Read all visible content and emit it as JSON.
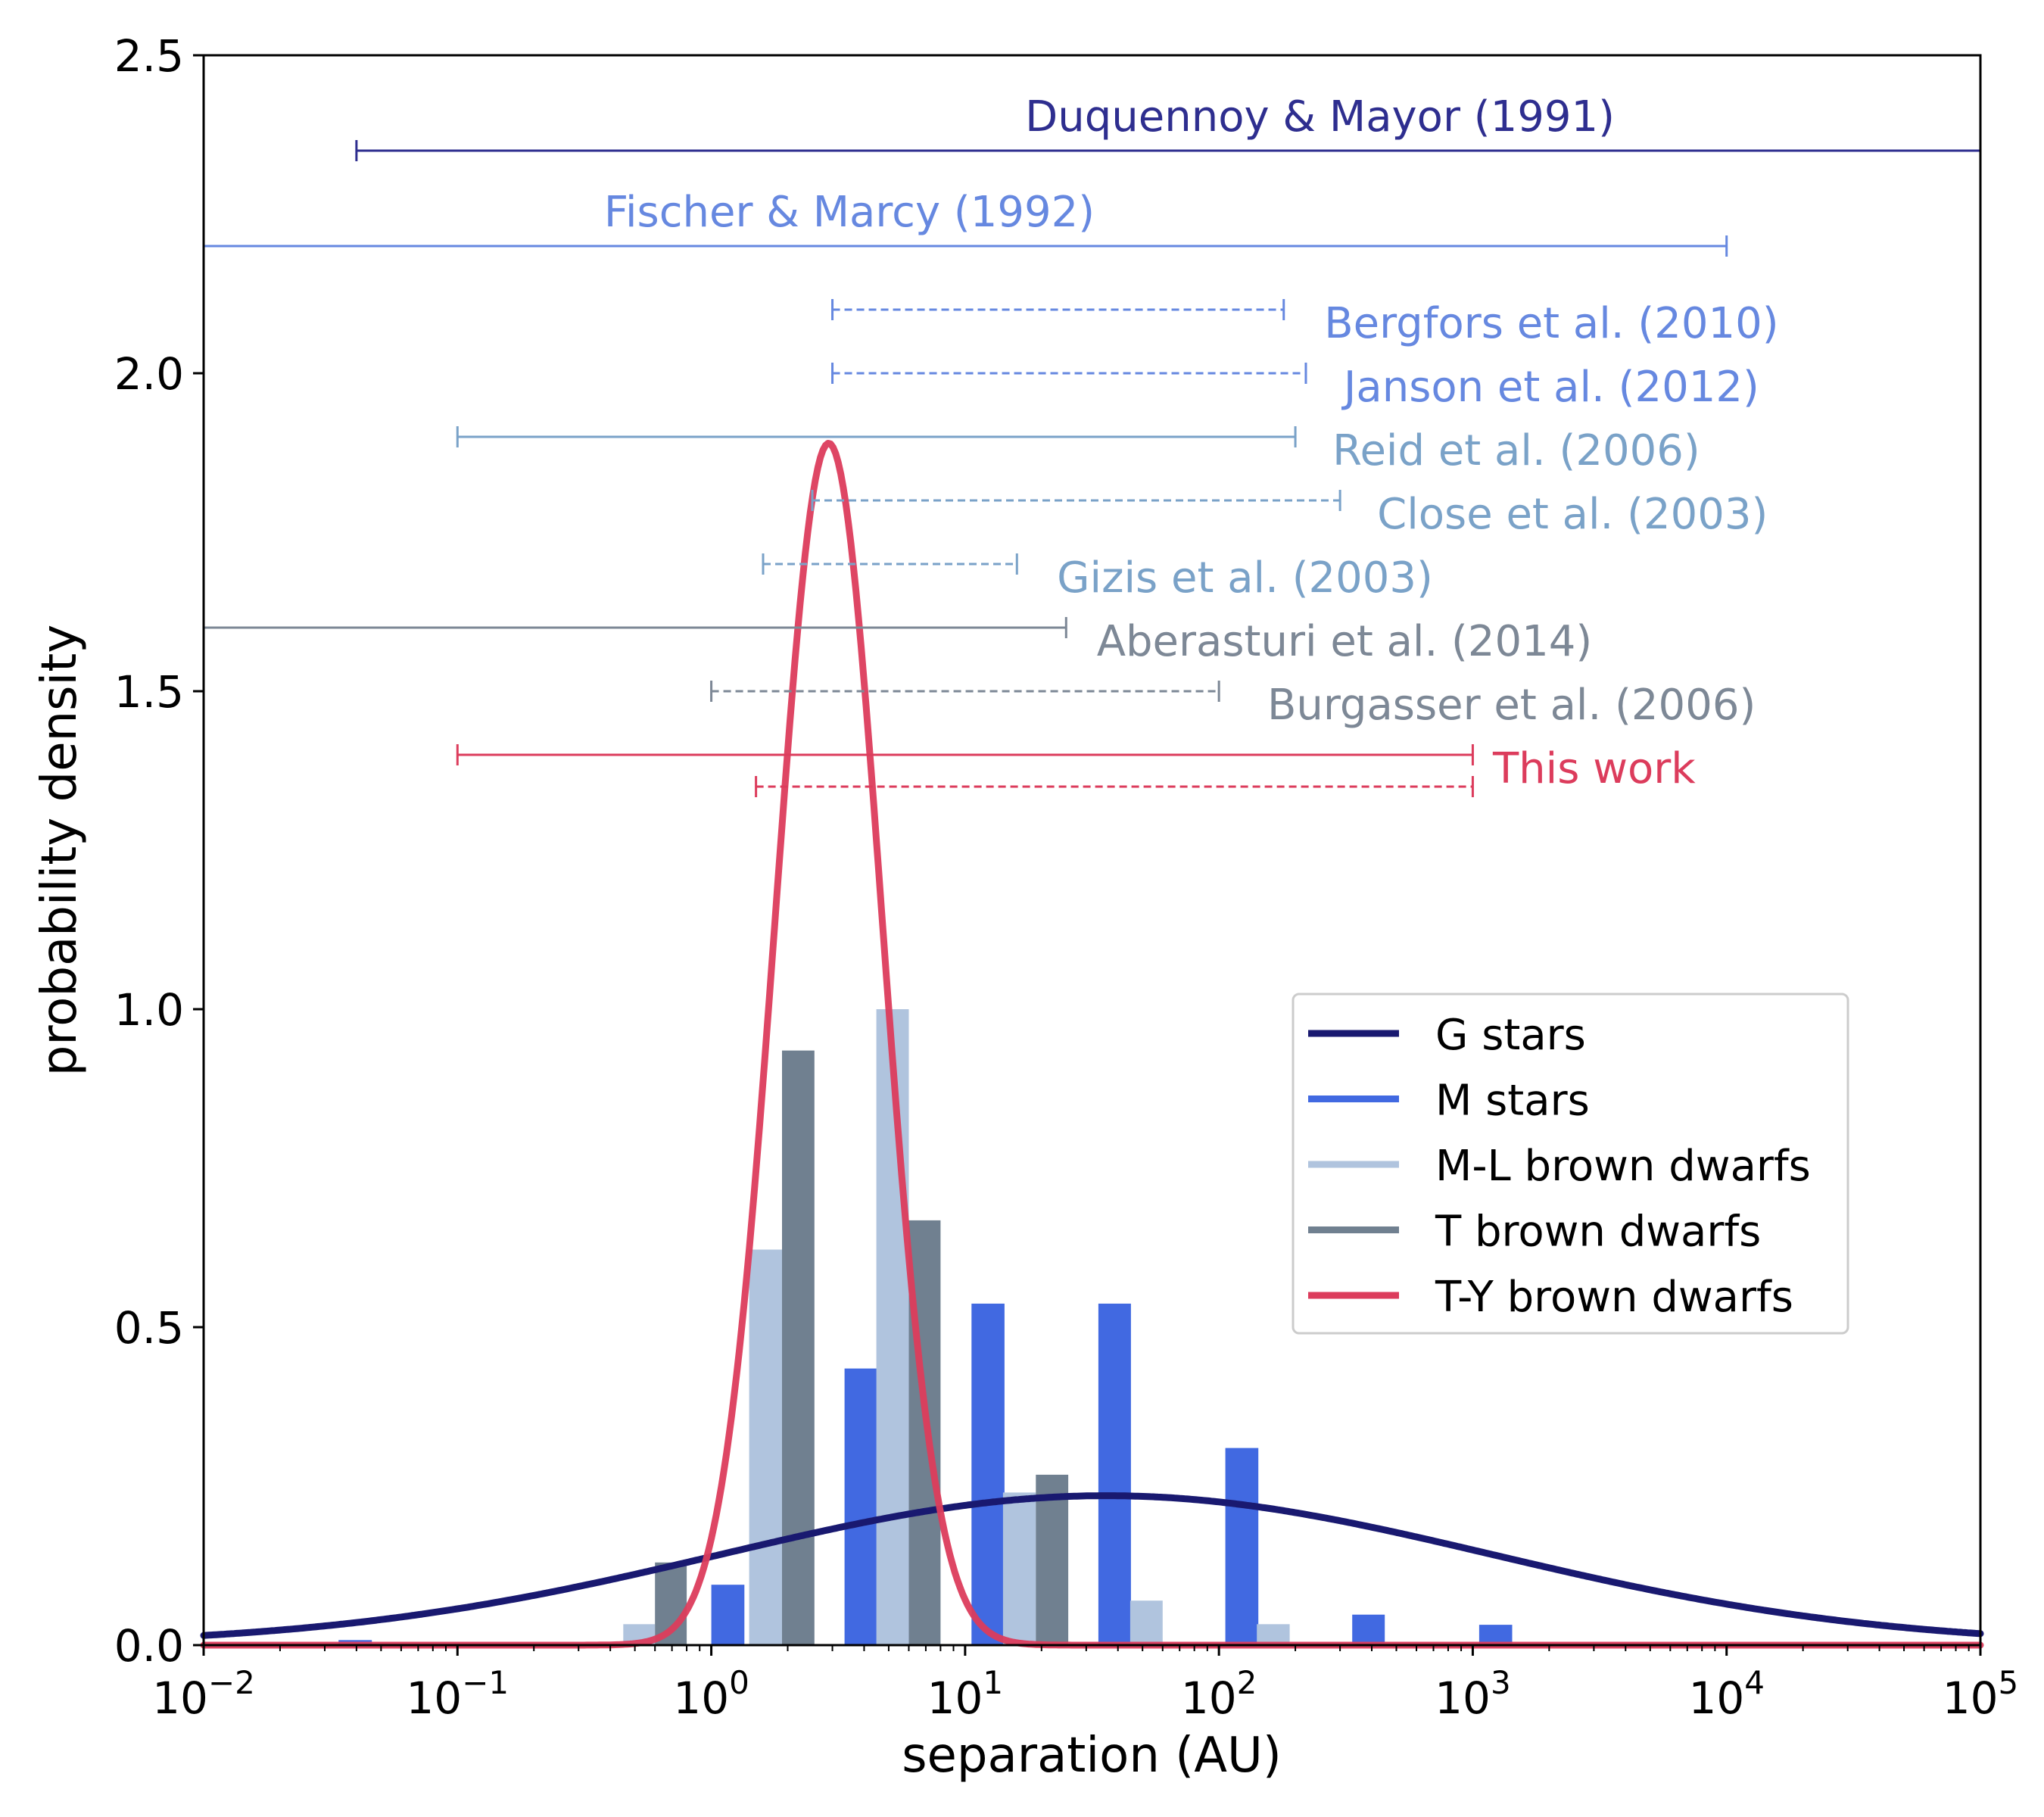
{
  "chart_data": {
    "type": "bar",
    "xlabel": "separation (AU)",
    "ylabel": "probability density",
    "xscale": "log",
    "xlim": [
      0.01,
      100000
    ],
    "ylim": [
      0,
      2.5
    ],
    "yticks": [
      "0.0",
      "0.5",
      "1.0",
      "1.5",
      "2.0",
      "2.5"
    ],
    "xticks": [
      {
        "base": "10",
        "exp": "−2",
        "value": 0.01
      },
      {
        "base": "10",
        "exp": "−1",
        "value": 0.1
      },
      {
        "base": "10",
        "exp": "0",
        "value": 1
      },
      {
        "base": "10",
        "exp": "1",
        "value": 10
      },
      {
        "base": "10",
        "exp": "2",
        "value": 100
      },
      {
        "base": "10",
        "exp": "3",
        "value": 1000
      },
      {
        "base": "10",
        "exp": "4",
        "value": 10000
      },
      {
        "base": "10",
        "exp": "5",
        "value": 100000
      }
    ],
    "colors": {
      "g_stars": "#191970",
      "m_stars": "#4169e1",
      "ml_bd": "#b0c4de",
      "t_bd": "#708090",
      "ty_bd": "#dc3c5c",
      "duquennoy": "#2e2e8f",
      "fischer": "#6688e0",
      "lightsteel": "#7aa2c8",
      "slate": "#7d8896"
    },
    "legend": {
      "position": "center-right",
      "entries": [
        {
          "label": "G stars",
          "color": "#191970"
        },
        {
          "label": "M stars",
          "color": "#4169e1"
        },
        {
          "label": "M-L brown dwarfs",
          "color": "#b0c4de"
        },
        {
          "label": "T brown dwarfs",
          "color": "#708090"
        },
        {
          "label": "T-Y brown dwarfs",
          "color": "#dc3c5c"
        }
      ]
    },
    "series": [
      {
        "name": "M stars",
        "type": "bar",
        "color": "#4169e1",
        "bars": [
          {
            "left": 0.034,
            "right": 0.046,
            "value": 0.008
          },
          {
            "left": 1.0,
            "right": 1.35,
            "value": 0.095
          },
          {
            "left": 3.35,
            "right": 4.5,
            "value": 0.435
          },
          {
            "left": 10.6,
            "right": 14.3,
            "value": 0.537
          },
          {
            "left": 33.5,
            "right": 45.0,
            "value": 0.537
          },
          {
            "left": 106,
            "right": 143,
            "value": 0.31
          },
          {
            "left": 335,
            "right": 450,
            "value": 0.048
          },
          {
            "left": 1060,
            "right": 1430,
            "value": 0.032
          }
        ]
      },
      {
        "name": "M-L brown dwarfs",
        "type": "bar",
        "color": "#b0c4de",
        "bars": [
          {
            "left": 0.45,
            "right": 0.6,
            "value": 0.033
          },
          {
            "left": 1.41,
            "right": 1.9,
            "value": 0.622
          },
          {
            "left": 4.47,
            "right": 6.0,
            "value": 1.0
          },
          {
            "left": 14.1,
            "right": 19.0,
            "value": 0.24
          },
          {
            "left": 44.7,
            "right": 60.0,
            "value": 0.07
          },
          {
            "left": 141,
            "right": 190,
            "value": 0.033
          }
        ]
      },
      {
        "name": "T brown dwarfs",
        "type": "bar",
        "color": "#708090",
        "bars": [
          {
            "left": 0.6,
            "right": 0.8,
            "value": 0.13
          },
          {
            "left": 1.9,
            "right": 2.55,
            "value": 0.935
          },
          {
            "left": 6.0,
            "right": 8.0,
            "value": 0.668
          },
          {
            "left": 19.0,
            "right": 25.5,
            "value": 0.268
          }
        ]
      },
      {
        "name": "G stars",
        "type": "lognormal",
        "color": "#191970",
        "log10_mean": 1.5563,
        "log10_sigma": 1.52,
        "peak": 0.235
      },
      {
        "name": "T-Y brown dwarfs",
        "type": "lognormal",
        "color": "#dc3c5c",
        "log10_mean": 0.4624,
        "log10_sigma": 0.21,
        "peak": 1.89
      }
    ],
    "ranges": [
      {
        "label": "Duquennoy & Mayor (1991)",
        "y": 2.35,
        "low": 0.04,
        "high": 100000,
        "dashed": false,
        "color": "#2e2e8f",
        "label_anchor": "middle",
        "label_x": 250,
        "label_y": 2.405
      },
      {
        "label": "Fischer & Marcy (1992)",
        "y": 2.2,
        "low": 0.01,
        "high": 10000,
        "dashed": false,
        "color": "#6688e0",
        "label_anchor": "middle",
        "label_x": 3.5,
        "label_y": 2.255
      },
      {
        "label": "Bergfors et al. (2010)",
        "y": 2.1,
        "low": 3,
        "high": 180,
        "dashed": true,
        "color": "#6688e0",
        "label_anchor": "start",
        "label_x": 260,
        "label_y": 2.08
      },
      {
        "label": "Janson et al. (2012)",
        "y": 2.0,
        "low": 3,
        "high": 220,
        "dashed": true,
        "color": "#6688e0",
        "label_anchor": "start",
        "label_x": 310,
        "label_y": 1.98
      },
      {
        "label": "Reid et al. (2006)",
        "y": 1.9,
        "low": 0.1,
        "high": 200,
        "dashed": false,
        "color": "#7aa2c8",
        "label_anchor": "start",
        "label_x": 280,
        "label_y": 1.88
      },
      {
        "label": "Close et al. (2003)",
        "y": 1.8,
        "low": 2.5,
        "high": 300,
        "dashed": true,
        "color": "#7aa2c8",
        "label_anchor": "start",
        "label_x": 420,
        "label_y": 1.78
      },
      {
        "label": "Gizis et al. (2003)",
        "y": 1.7,
        "low": 1.6,
        "high": 16,
        "dashed": true,
        "color": "#7aa2c8",
        "label_anchor": "start",
        "label_x": 23,
        "label_y": 1.68
      },
      {
        "label": "Aberasturi et al. (2014)",
        "y": 1.6,
        "low": 0.01,
        "high": 25,
        "dashed": false,
        "color": "#7d8896",
        "label_anchor": "start",
        "label_x": 33,
        "label_y": 1.58
      },
      {
        "label": "Burgasser et al. (2006)",
        "y": 1.5,
        "low": 1,
        "high": 100,
        "dashed": true,
        "color": "#7d8896",
        "label_anchor": "start",
        "label_x": 155,
        "label_y": 1.48
      },
      {
        "label": "This work",
        "y": 1.4,
        "low": 0.1,
        "high": 1000,
        "dashed": false,
        "color": "#dc3c5c",
        "label_anchor": "start",
        "label_x": 1200,
        "label_y": 1.38
      },
      {
        "label": "",
        "y": 1.35,
        "low": 1.5,
        "high": 1000,
        "dashed": true,
        "color": "#dc3c5c",
        "label_anchor": "start",
        "label_x": 0,
        "label_y": 0
      }
    ]
  }
}
